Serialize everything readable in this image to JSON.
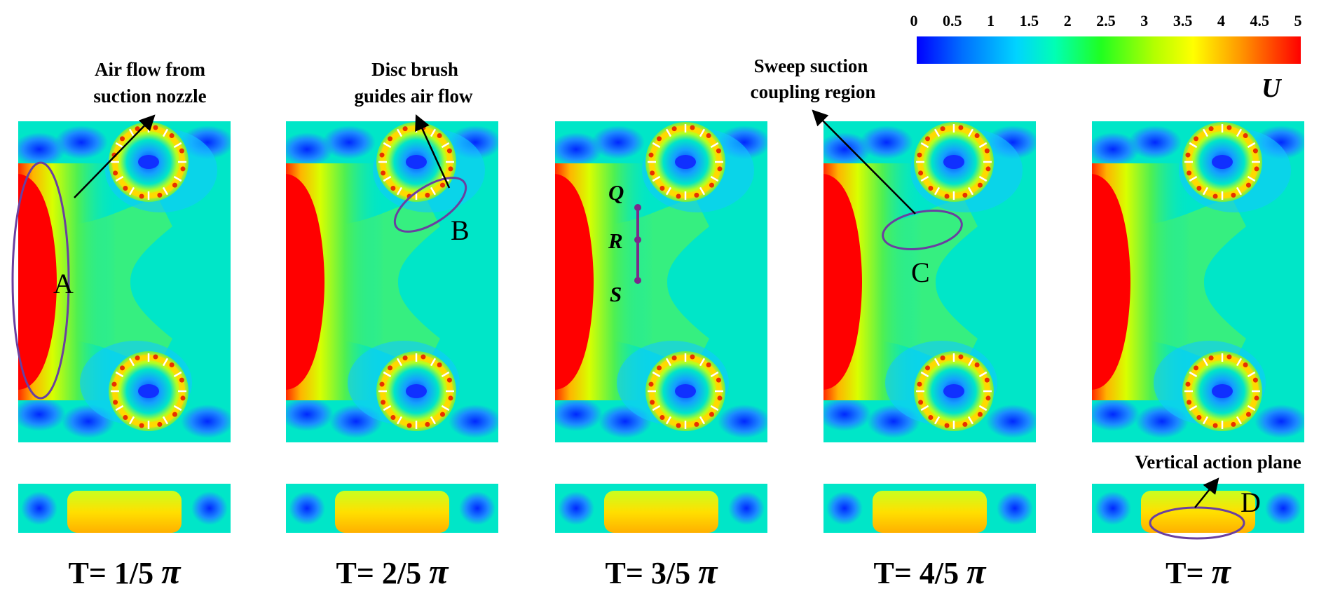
{
  "colorbar": {
    "ticks": [
      "0",
      "0.5",
      "1",
      "1.5",
      "2",
      "2.5",
      "3",
      "3.5",
      "4",
      "4.5",
      "5"
    ],
    "symbol": "U",
    "colors": [
      "#0000ff",
      "#0070ff",
      "#00d4ff",
      "#00ffb4",
      "#20ff20",
      "#b4ff00",
      "#ffff00",
      "#ff9a00",
      "#ff0000"
    ]
  },
  "panels": [
    {
      "time_label": "T= 1/5 ",
      "time_symbol": "π"
    },
    {
      "time_label": "T= 2/5 ",
      "time_symbol": "π"
    },
    {
      "time_label": "T= 3/5 ",
      "time_symbol": "π"
    },
    {
      "time_label": "T= 4/5 ",
      "time_symbol": "π"
    },
    {
      "time_label": "T= ",
      "time_symbol": "π"
    }
  ],
  "annotations": {
    "A": {
      "letter": "A",
      "text_lines": [
        "Air flow from",
        "suction nozzle"
      ]
    },
    "B": {
      "letter": "B",
      "text_lines": [
        "Disc brush",
        "guides  air flow"
      ]
    },
    "C": {
      "letter": "C",
      "text_lines": [
        "Sweep suction",
        "coupling region"
      ]
    },
    "D": {
      "letter": "D",
      "text_lines": [
        "Vertical action plane"
      ]
    }
  },
  "line_points": {
    "Q": "Q",
    "R": "R",
    "S": "S"
  },
  "theme": {
    "field_bg": "#00e6c8",
    "nozzle": "#ff0000",
    "annotation_ellipse": "#6a3fa0"
  }
}
